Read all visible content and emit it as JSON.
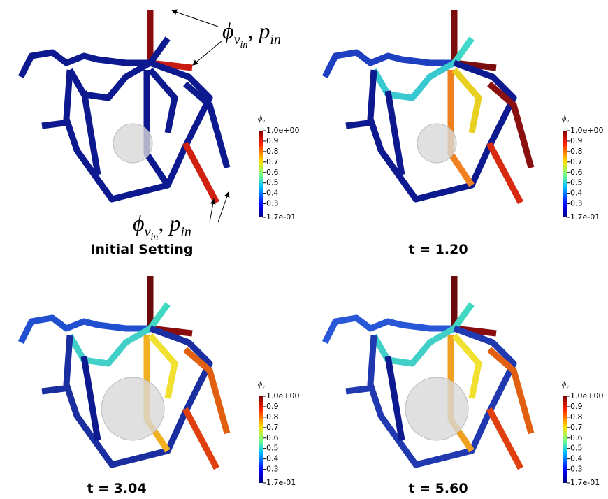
{
  "panels": [
    {
      "caption": "Initial Setting",
      "colorbar": {
        "title": "ϕ",
        "title_sub": "v",
        "ticks": [
          {
            "value": 1.0,
            "label": "1.0e+00"
          },
          0.9,
          0.8,
          0.7,
          0.6,
          0.5,
          0.4,
          0.3,
          {
            "value": 0.17,
            "label": "1.7e-01"
          }
        ]
      }
    },
    {
      "caption": "t = 1.20",
      "colorbar": {
        "title": "ϕ",
        "title_sub": "v",
        "ticks": [
          {
            "value": 1.0,
            "label": "1.0e+00"
          },
          0.9,
          0.8,
          0.7,
          0.6,
          0.5,
          0.4,
          0.3,
          {
            "value": 0.17,
            "label": "1.7e-01"
          }
        ]
      }
    },
    {
      "caption": "t = 3.04",
      "colorbar": {
        "title": "ϕ",
        "title_sub": "v",
        "ticks": [
          {
            "value": 1.0,
            "label": "1.0e+00"
          },
          0.9,
          0.8,
          0.7,
          0.6,
          0.5,
          0.4,
          0.3,
          {
            "value": 0.17,
            "label": "1.7e-01"
          }
        ]
      }
    },
    {
      "caption": "t = 5.60",
      "colorbar": {
        "title": "ϕ",
        "title_sub": "v",
        "ticks": [
          {
            "value": 1.0,
            "label": "1.0e+00"
          },
          0.9,
          0.8,
          0.7,
          0.6,
          0.5,
          0.4,
          0.3,
          {
            "value": 0.17,
            "label": "1.7e-01"
          }
        ]
      }
    }
  ],
  "annotations": [
    {
      "symbol1": "ϕ",
      "sub1": "v",
      "subsub1": "in",
      "separator": ",",
      "symbol2": "p",
      "sub2": "in"
    },
    {
      "symbol1": "ϕ",
      "sub1": "v",
      "subsub1": "in",
      "separator": ",",
      "symbol2": "p",
      "sub2": "in"
    }
  ]
}
